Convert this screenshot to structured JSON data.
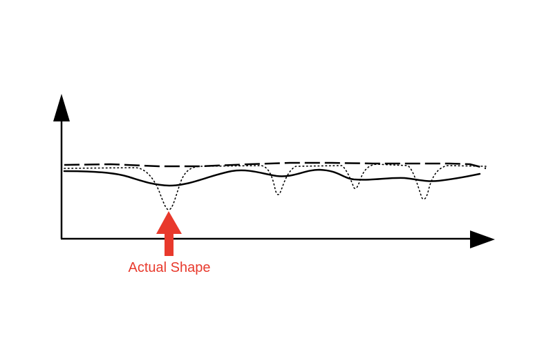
{
  "annotation": {
    "label": "Actual Shape",
    "color": "#e8392c"
  },
  "colors": {
    "background": "#ffffff",
    "ink": "#000000"
  },
  "lines": [
    {
      "name": "dashed-line",
      "style": "dashed"
    },
    {
      "name": "dotted-line",
      "style": "dotted"
    },
    {
      "name": "solid-line",
      "style": "solid"
    }
  ]
}
